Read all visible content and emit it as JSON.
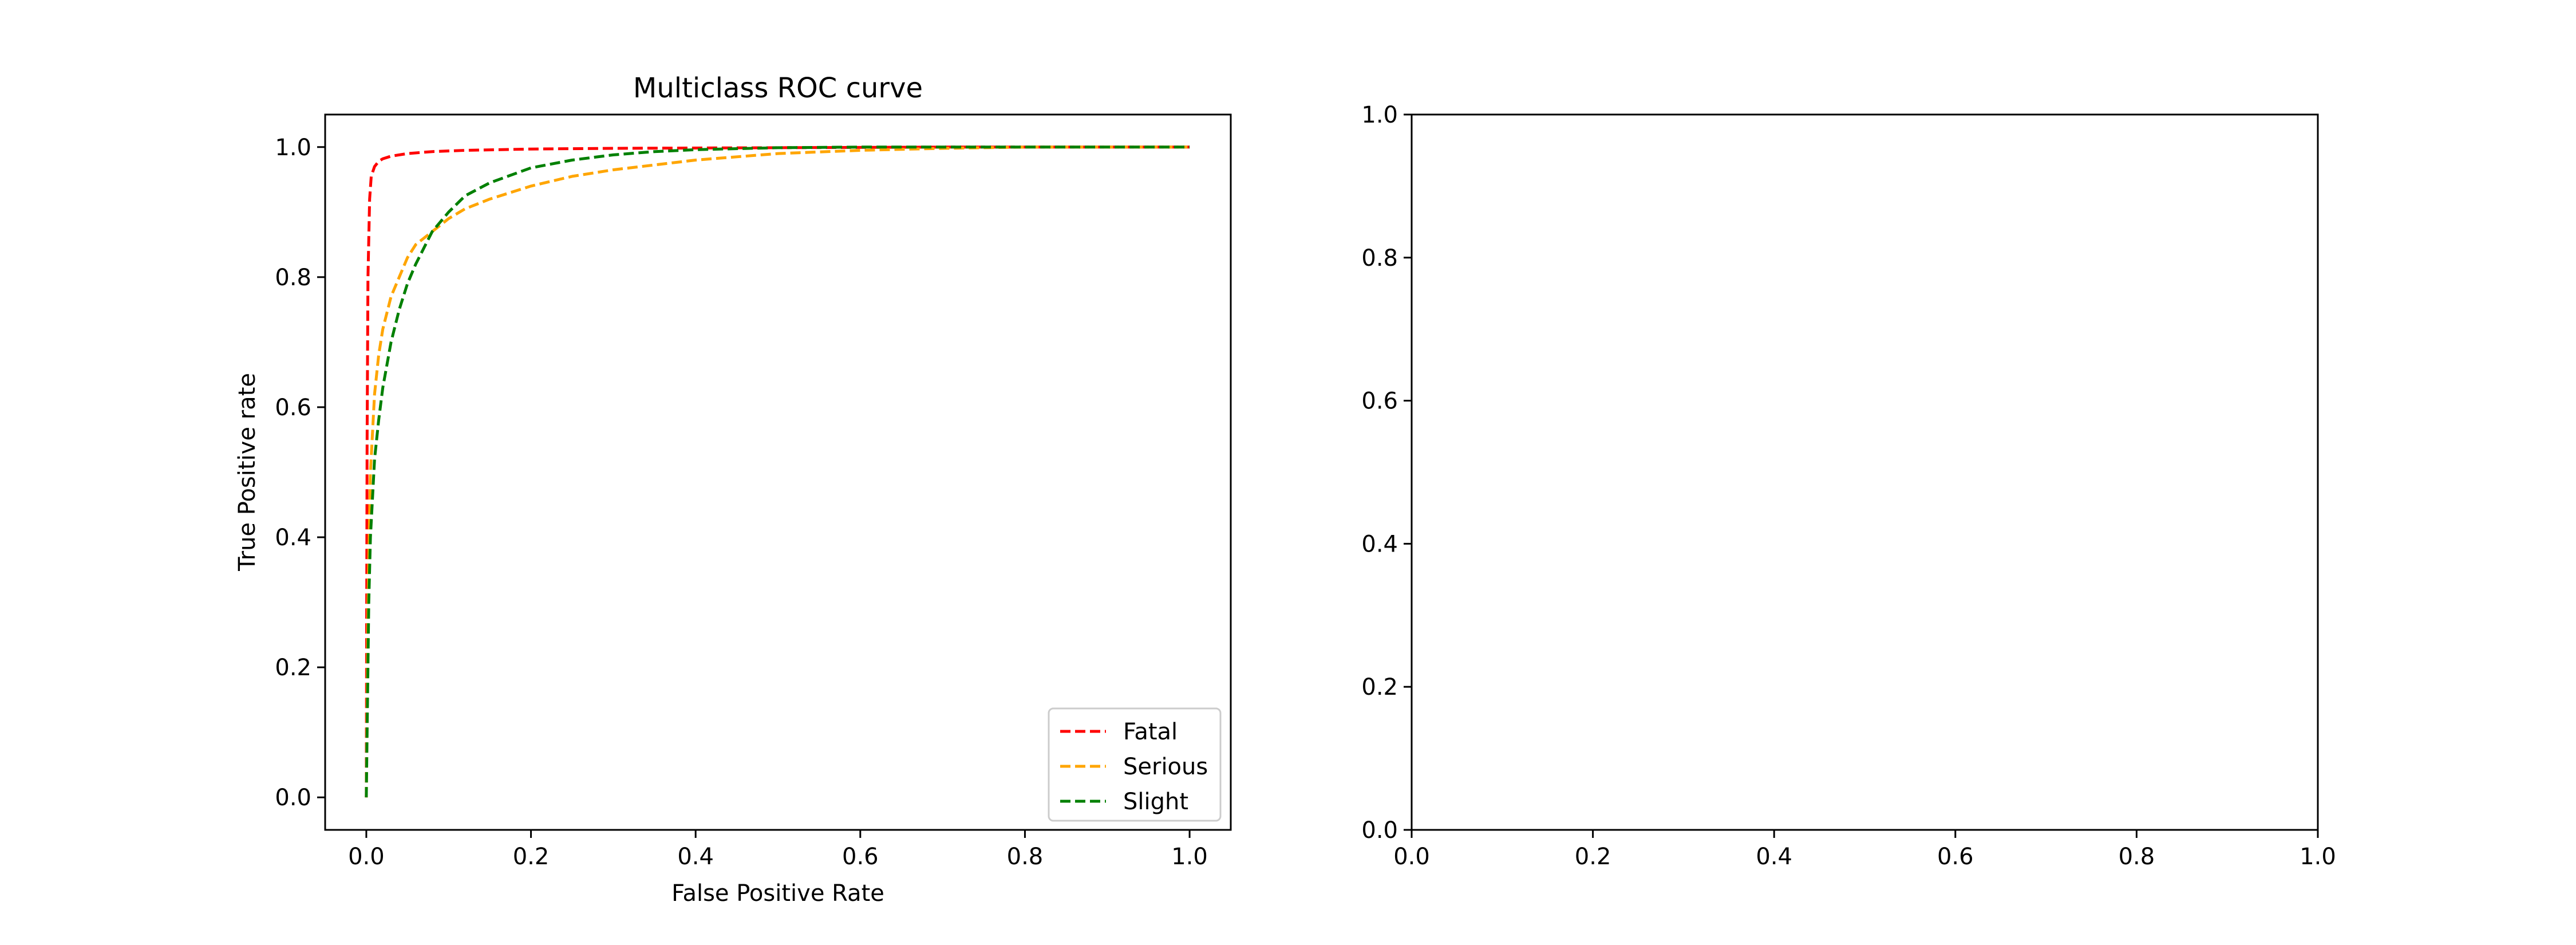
{
  "chart_data": [
    {
      "type": "line",
      "title": "Multiclass ROC curve",
      "xlabel": "False Positive Rate",
      "ylabel": "True Positive rate",
      "xlim": [
        -0.05,
        1.05
      ],
      "ylim": [
        -0.05,
        1.05
      ],
      "xticks": [
        0.0,
        0.2,
        0.4,
        0.6,
        0.8,
        1.0
      ],
      "yticks": [
        0.0,
        0.2,
        0.4,
        0.6,
        0.8,
        1.0
      ],
      "xtick_labels": [
        "0.0",
        "0.2",
        "0.4",
        "0.6",
        "0.8",
        "1.0"
      ],
      "ytick_labels": [
        "0.0",
        "0.2",
        "0.4",
        "0.6",
        "0.8",
        "1.0"
      ],
      "grid": false,
      "legend": "lower right",
      "line_style": "dashed",
      "series": [
        {
          "name": "Fatal",
          "color": "#ff0000",
          "x": [
            0.0,
            0.0005,
            0.001,
            0.002,
            0.004,
            0.006,
            0.01,
            0.015,
            0.02,
            0.03,
            0.05,
            0.08,
            0.12,
            0.2,
            0.3,
            0.5,
            0.7,
            1.0
          ],
          "y": [
            0.0,
            0.3,
            0.55,
            0.8,
            0.92,
            0.955,
            0.97,
            0.978,
            0.982,
            0.986,
            0.99,
            0.993,
            0.995,
            0.997,
            0.998,
            0.999,
            1.0,
            1.0
          ]
        },
        {
          "name": "Serious",
          "color": "#ffa500",
          "x": [
            0.0,
            0.002,
            0.005,
            0.01,
            0.015,
            0.02,
            0.03,
            0.04,
            0.05,
            0.06,
            0.08,
            0.1,
            0.12,
            0.15,
            0.2,
            0.25,
            0.3,
            0.4,
            0.5,
            0.6,
            0.7,
            0.8,
            1.0
          ],
          "y": [
            0.0,
            0.3,
            0.5,
            0.62,
            0.68,
            0.72,
            0.77,
            0.8,
            0.83,
            0.85,
            0.87,
            0.89,
            0.905,
            0.92,
            0.94,
            0.955,
            0.965,
            0.98,
            0.99,
            0.995,
            0.998,
            1.0,
            1.0
          ]
        },
        {
          "name": "Slight",
          "color": "#008000",
          "x": [
            0.0,
            0.001,
            0.003,
            0.005,
            0.01,
            0.015,
            0.02,
            0.03,
            0.04,
            0.05,
            0.06,
            0.08,
            0.1,
            0.12,
            0.15,
            0.2,
            0.25,
            0.3,
            0.35,
            0.4,
            0.5,
            0.6,
            1.0
          ],
          "y": [
            0.0,
            0.1,
            0.3,
            0.4,
            0.52,
            0.58,
            0.63,
            0.7,
            0.75,
            0.79,
            0.82,
            0.87,
            0.9,
            0.925,
            0.945,
            0.968,
            0.98,
            0.988,
            0.993,
            0.996,
            0.999,
            1.0,
            1.0
          ]
        }
      ]
    },
    {
      "type": "line",
      "title": "",
      "xlabel": "",
      "ylabel": "",
      "xlim": [
        0.0,
        1.0
      ],
      "ylim": [
        0.0,
        1.0
      ],
      "xticks": [
        0.0,
        0.2,
        0.4,
        0.6,
        0.8,
        1.0
      ],
      "yticks": [
        0.0,
        0.2,
        0.4,
        0.6,
        0.8,
        1.0
      ],
      "xtick_labels": [
        "0.0",
        "0.2",
        "0.4",
        "0.6",
        "0.8",
        "1.0"
      ],
      "ytick_labels": [
        "0.0",
        "0.2",
        "0.4",
        "0.6",
        "0.8",
        "1.0"
      ],
      "grid": false,
      "series": []
    }
  ]
}
